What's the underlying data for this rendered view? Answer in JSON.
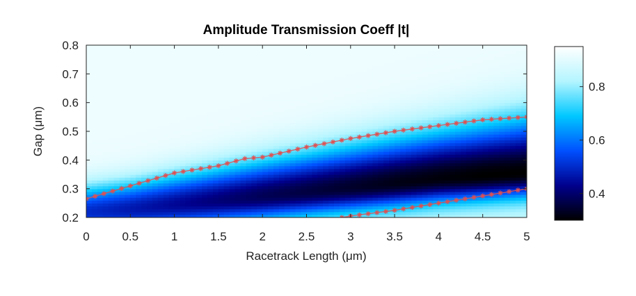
{
  "chart_data": {
    "type": "heatmap",
    "title": "Amplitude Transmission Coeff |t|",
    "xlabel": "Racetrack Length (μm)",
    "ylabel": "Gap (μm)",
    "xlim": [
      0,
      5
    ],
    "ylim": [
      0.2,
      0.8
    ],
    "x_ticks": [
      "0",
      "0.5",
      "1",
      "1.5",
      "2",
      "2.5",
      "3",
      "3.5",
      "4",
      "4.5",
      "5"
    ],
    "y_ticks": [
      "0.2",
      "0.3",
      "0.4",
      "0.5",
      "0.6",
      "0.7",
      "0.8"
    ],
    "colorbar": {
      "range": [
        0.3,
        0.95
      ],
      "ticks": [
        "0.4",
        "0.6",
        "0.8"
      ],
      "colors": [
        "#000000",
        "#00008c",
        "#0050ff",
        "#00c8ff",
        "#b4f5ff",
        "#ffffff"
      ]
    },
    "field": {
      "min_gap": [
        0.22,
        0.23,
        0.245,
        0.26,
        0.275,
        0.29,
        0.305,
        0.32,
        0.335,
        0.345,
        0.355
      ],
      "upper_gap": [
        0.36,
        0.38,
        0.41,
        0.44,
        0.47,
        0.5,
        0.53,
        0.56,
        0.59,
        0.62,
        0.65
      ],
      "min_value": [
        0.5,
        0.47,
        0.44,
        0.41,
        0.38,
        0.36,
        0.34,
        0.32,
        0.31,
        0.3,
        0.3
      ]
    },
    "series": [
      {
        "color": "#e05050",
        "marker": "asterisk",
        "x": [
          0,
          0.5,
          1,
          1.5,
          1.8,
          2,
          2.5,
          3,
          3.5,
          4,
          4.5,
          5
        ],
        "y": [
          0.265,
          0.31,
          0.355,
          0.38,
          0.405,
          0.41,
          0.445,
          0.475,
          0.5,
          0.52,
          0.54,
          0.55
        ]
      },
      {
        "color": "#e05050",
        "marker": "asterisk",
        "x": [
          2.9,
          3,
          3.5,
          4,
          4.5,
          5
        ],
        "y": [
          0.2,
          0.205,
          0.225,
          0.25,
          0.275,
          0.3
        ]
      }
    ]
  }
}
